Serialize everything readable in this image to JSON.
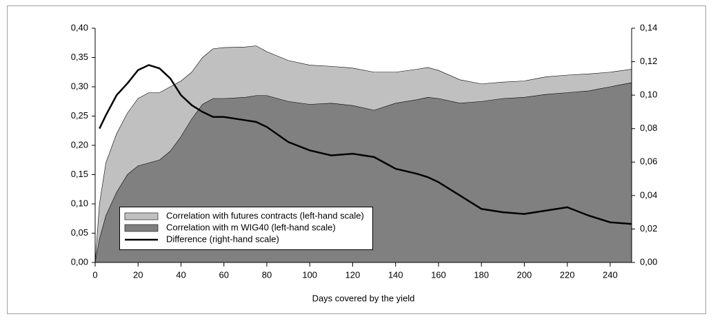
{
  "chart_data": {
    "type": "area-line",
    "x_label": "Days covered by the yield",
    "x": [
      0,
      2,
      5,
      10,
      15,
      20,
      25,
      30,
      35,
      40,
      45,
      50,
      55,
      60,
      70,
      75,
      80,
      90,
      100,
      110,
      120,
      130,
      140,
      150,
      155,
      160,
      170,
      180,
      190,
      200,
      210,
      220,
      230,
      240,
      250
    ],
    "series": [
      {
        "name": "Correlation with futures contracts (left-hand scale)",
        "color": "#c0c0c0",
        "values": [
          0,
          0.1,
          0.17,
          0.22,
          0.255,
          0.28,
          0.29,
          0.29,
          0.3,
          0.31,
          0.325,
          0.35,
          0.365,
          0.367,
          0.368,
          0.37,
          0.36,
          0.345,
          0.337,
          0.335,
          0.332,
          0.325,
          0.325,
          0.33,
          0.333,
          0.328,
          0.312,
          0.305,
          0.308,
          0.31,
          0.317,
          0.32,
          0.322,
          0.325,
          0.33
        ]
      },
      {
        "name": "Correlation with m WIG40 (left-hand scale)",
        "color": "#808080",
        "values": [
          0,
          0.04,
          0.08,
          0.12,
          0.15,
          0.165,
          0.17,
          0.175,
          0.19,
          0.215,
          0.245,
          0.27,
          0.28,
          0.28,
          0.282,
          0.285,
          0.285,
          0.275,
          0.27,
          0.272,
          0.268,
          0.26,
          0.272,
          0.278,
          0.282,
          0.28,
          0.272,
          0.275,
          0.28,
          0.282,
          0.287,
          0.29,
          0.293,
          0.3,
          0.307
        ]
      },
      {
        "name": "Difference (right-hand scale)",
        "color": "#000000",
        "axis": "y2",
        "values": [
          null,
          0.08,
          0.088,
          0.1,
          0.107,
          0.115,
          0.118,
          0.116,
          0.11,
          0.1,
          0.094,
          0.09,
          0.087,
          0.087,
          0.085,
          0.084,
          0.081,
          0.072,
          0.067,
          0.064,
          0.065,
          0.063,
          0.056,
          0.053,
          0.051,
          0.048,
          0.04,
          0.032,
          0.03,
          0.029,
          0.031,
          0.033,
          0.028,
          0.024,
          0.023
        ]
      }
    ],
    "xlim": [
      0,
      250
    ],
    "xticks": [
      0,
      20,
      40,
      60,
      80,
      100,
      120,
      140,
      160,
      180,
      200,
      220,
      240
    ],
    "ylim": [
      0,
      0.4
    ],
    "yticks": [
      {
        "value": 0,
        "label": "0,00"
      },
      {
        "value": 0.05,
        "label": "0,05"
      },
      {
        "value": 0.1,
        "label": "0,10"
      },
      {
        "value": 0.15,
        "label": "0,15"
      },
      {
        "value": 0.2,
        "label": "0,20"
      },
      {
        "value": 0.25,
        "label": "0,25"
      },
      {
        "value": 0.3,
        "label": "0,30"
      },
      {
        "value": 0.35,
        "label": "0,35"
      },
      {
        "value": 0.4,
        "label": "0,40"
      }
    ],
    "y2lim": [
      0,
      0.14
    ],
    "y2ticks": [
      {
        "value": 0,
        "label": "0,00"
      },
      {
        "value": 0.02,
        "label": "0,02"
      },
      {
        "value": 0.04,
        "label": "0,04"
      },
      {
        "value": 0.06,
        "label": "0,06"
      },
      {
        "value": 0.08,
        "label": "0,08"
      },
      {
        "value": 0.1,
        "label": "0,10"
      },
      {
        "value": 0.12,
        "label": "0,12"
      },
      {
        "value": 0.14,
        "label": "0,14"
      }
    ],
    "grid": false
  }
}
